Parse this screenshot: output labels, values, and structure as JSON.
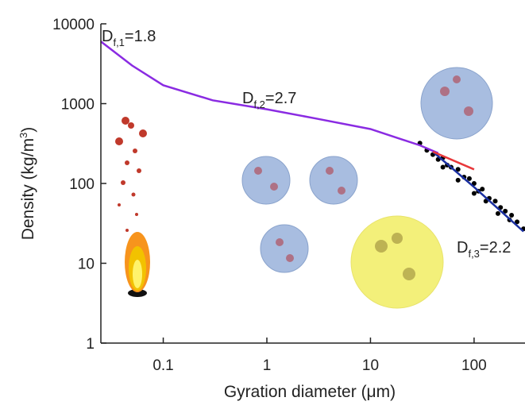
{
  "chart_data": {
    "type": "line",
    "xlabel": "Gyration diameter (μm)",
    "ylabel": {
      "text": "Density (kg/m",
      "sup": "3",
      "end": ")"
    },
    "log_x": true,
    "log_y": true,
    "xlim": [
      0.025,
      310
    ],
    "ylim": [
      1,
      10000
    ],
    "xticks": [
      0.1,
      1,
      10,
      100
    ],
    "yticks": [
      1,
      10,
      100,
      1000,
      10000
    ],
    "series": [
      {
        "type": "scatter",
        "color": "#000000",
        "x": [
          30,
          35,
          40,
          45,
          50,
          55,
          60,
          70,
          80,
          90,
          100,
          110,
          120,
          140,
          160,
          180,
          200,
          230,
          260,
          300,
          50,
          70,
          100,
          130,
          170,
          220
        ],
        "values": [
          320,
          260,
          230,
          200,
          210,
          170,
          160,
          150,
          120,
          115,
          100,
          80,
          85,
          65,
          60,
          50,
          45,
          40,
          33,
          27,
          160,
          110,
          75,
          60,
          42,
          35
        ]
      },
      {
        "type": "line",
        "color": "#8a2be2",
        "x": [
          0.025,
          0.05,
          0.1,
          0.3,
          1,
          3,
          10,
          30,
          45
        ],
        "values": [
          6000,
          3000,
          1700,
          1100,
          850,
          650,
          480,
          300,
          240
        ]
      },
      {
        "type": "line",
        "color": "#1a2fa0",
        "x": [
          40,
          100,
          300
        ],
        "values": [
          250,
          90,
          25
        ]
      },
      {
        "type": "line",
        "color": "#e8383b",
        "x": [
          40,
          100
        ],
        "values": [
          250,
          150
        ]
      }
    ],
    "annotations": [
      {
        "base": "D",
        "sub": "f,1",
        "text": "=1.8"
      },
      {
        "base": "D",
        "sub": "f,2",
        "text": "=2.7"
      },
      {
        "base": "D",
        "sub": "f,3",
        "text": "=2.2"
      }
    ]
  }
}
